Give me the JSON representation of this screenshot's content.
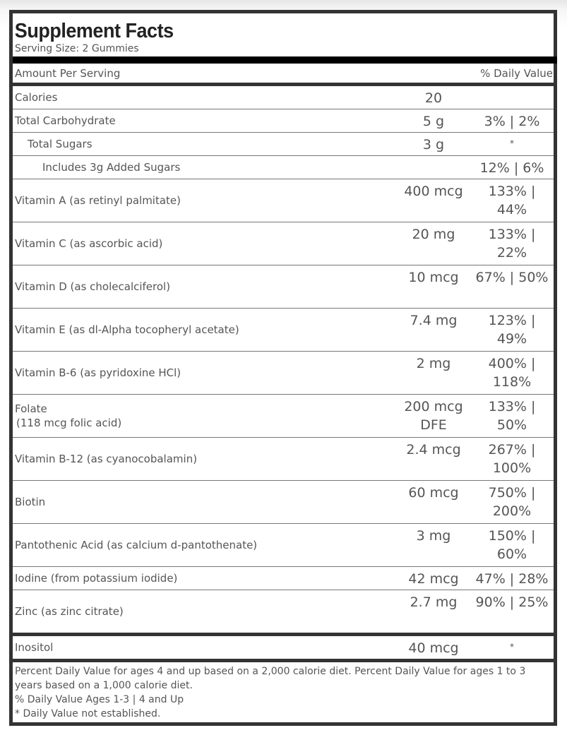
{
  "panel": {
    "title": "Supplement Facts",
    "serving_size": "Serving Size: 2 Gummies",
    "amount_per_serving": "Amount Per Serving",
    "daily_value_header": "% Daily Value"
  },
  "rows": [
    {
      "name": "Calories",
      "amount": "20",
      "dv": ""
    },
    {
      "name": "Total Carbohydrate",
      "amount": "5 g",
      "dv": "3% | 2%"
    },
    {
      "name": "Total Sugars",
      "amount": "3 g",
      "dv": "*"
    },
    {
      "name": "Includes 3g Added Sugars",
      "amount": "",
      "dv": "12% | 6%"
    },
    {
      "name": "Vitamin A (as retinyl palmitate)",
      "amount": "400 mcg",
      "dv": "133% | 44%"
    },
    {
      "name": "Vitamin C (as ascorbic acid)",
      "amount": "20 mg",
      "dv": "133% | 22%"
    },
    {
      "name": "Vitamin D (as cholecalciferol)",
      "amount": "10 mcg",
      "dv": "67% | 50%"
    },
    {
      "name": "Vitamin E (as dl-Alpha tocopheryl acetate)",
      "amount": "7.4 mg",
      "dv": "123% | 49%"
    },
    {
      "name": "Vitamin B-6 (as pyridoxine HCl)",
      "amount": "2 mg",
      "dv": "400% | 118%"
    },
    {
      "name": "Folate",
      "name_sub": "(118 mcg folic acid)",
      "amount": "200 mcg DFE",
      "dv": "133% | 50%"
    },
    {
      "name": "Vitamin B-12 (as cyanocobalamin)",
      "amount": "2.4 mcg",
      "dv": "267% | 100%"
    },
    {
      "name": "Biotin",
      "amount": "60 mcg",
      "dv": "750% | 200%"
    },
    {
      "name": "Pantothenic Acid (as calcium d-pantothenate)",
      "amount": "3 mg",
      "dv": "150% | 60%"
    },
    {
      "name": "Iodine (from potassium iodide)",
      "amount": "42 mcg",
      "dv": "47% | 28%"
    },
    {
      "name": "Zinc (as zinc citrate)",
      "amount": "2.7 mg",
      "dv": "90% | 25%"
    }
  ],
  "other": [
    {
      "name": "Inositol",
      "amount": "40 mcg",
      "dv": "*"
    }
  ],
  "footnotes": {
    "line1": "Percent Daily Value for ages 4 and up based on a 2,000 calorie diet. Percent Daily Value for ages 1 to 3 years based on a 1,000 calorie diet.",
    "line2": "% Daily Value Ages 1-3 | 4 and Up",
    "line3": "* Daily Value not established."
  },
  "colors": {
    "text": "#555555",
    "title": "#222222",
    "border": "#333333",
    "thick_bar": "#000000",
    "row_rule": "#777777"
  }
}
